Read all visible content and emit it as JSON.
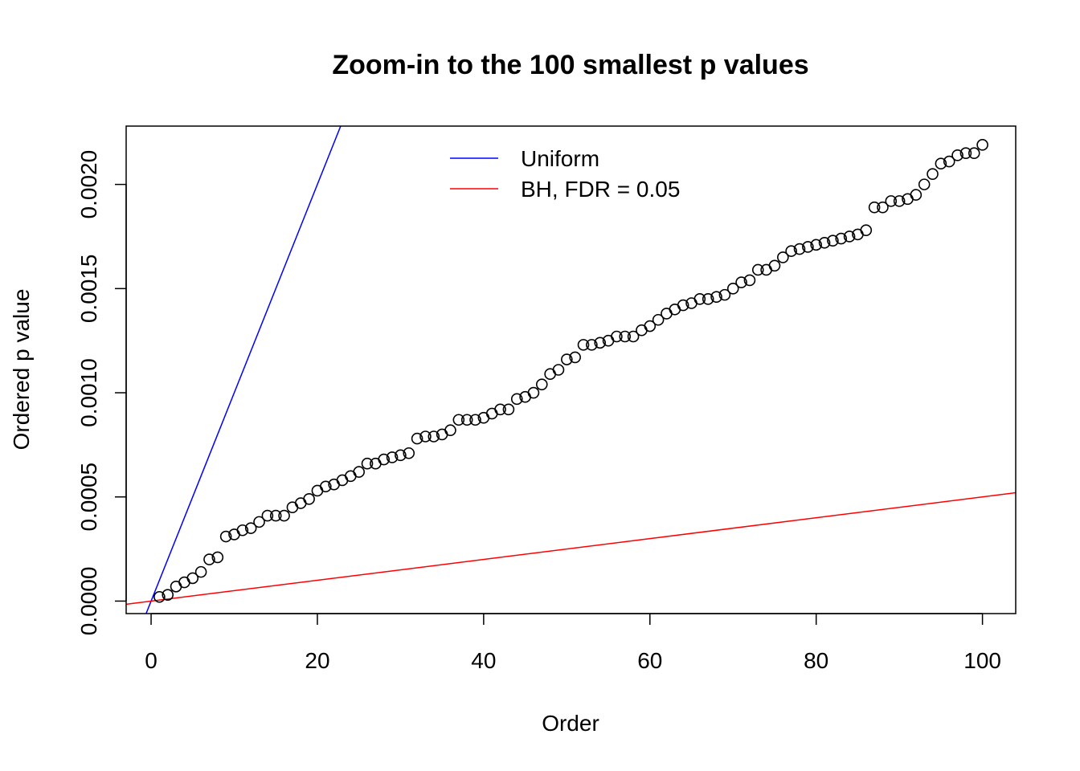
{
  "chart_data": {
    "type": "scatter",
    "title": "Zoom-in to the 100 smallest p values",
    "xlabel": "Order",
    "ylabel": "Ordered p value",
    "xlim": [
      -3,
      104
    ],
    "ylim": [
      -6e-05,
      0.00228
    ],
    "x_ticks": [
      0,
      20,
      40,
      60,
      80,
      100
    ],
    "x_tick_labels": [
      "0",
      "20",
      "40",
      "60",
      "80",
      "100"
    ],
    "y_ticks": [
      0.0,
      0.0005,
      0.001,
      0.0015,
      0.002
    ],
    "y_tick_labels": [
      "0.0000",
      "0.0005",
      "0.0010",
      "0.0015",
      "0.0020"
    ],
    "grid": false,
    "legend_position": "top-center",
    "legend": [
      {
        "label": "Uniform",
        "color": "#0000ff"
      },
      {
        "label": "BH, FDR = 0.05",
        "color": "#ff0000"
      }
    ],
    "lines": [
      {
        "name": "Uniform",
        "slope": 0.0001,
        "intercept": 0,
        "color": "#0000ff"
      },
      {
        "name": "BH, FDR = 0.05",
        "slope": 5e-06,
        "intercept": 0,
        "color": "#ff0000"
      }
    ],
    "points": {
      "x": [
        1,
        2,
        3,
        4,
        5,
        6,
        7,
        8,
        9,
        10,
        11,
        12,
        13,
        14,
        15,
        16,
        17,
        18,
        19,
        20,
        21,
        22,
        23,
        24,
        25,
        26,
        27,
        28,
        29,
        30,
        31,
        32,
        33,
        34,
        35,
        36,
        37,
        38,
        39,
        40,
        41,
        42,
        43,
        44,
        45,
        46,
        47,
        48,
        49,
        50,
        51,
        52,
        53,
        54,
        55,
        56,
        57,
        58,
        59,
        60,
        61,
        62,
        63,
        64,
        65,
        66,
        67,
        68,
        69,
        70,
        71,
        72,
        73,
        74,
        75,
        76,
        77,
        78,
        79,
        80,
        81,
        82,
        83,
        84,
        85,
        86,
        87,
        88,
        89,
        90,
        91,
        92,
        93,
        94,
        95,
        96,
        97,
        98,
        99,
        100
      ],
      "y": [
        2e-05,
        3e-05,
        7e-05,
        9e-05,
        0.00011,
        0.00014,
        0.0002,
        0.00021,
        0.00031,
        0.00032,
        0.00034,
        0.00035,
        0.00038,
        0.00041,
        0.00041,
        0.00041,
        0.00045,
        0.00047,
        0.00049,
        0.00053,
        0.00055,
        0.00056,
        0.00058,
        0.0006,
        0.00062,
        0.00066,
        0.00066,
        0.00068,
        0.00069,
        0.0007,
        0.00071,
        0.00078,
        0.00079,
        0.00079,
        0.0008,
        0.00082,
        0.00087,
        0.00087,
        0.00087,
        0.00088,
        0.0009,
        0.00092,
        0.00092,
        0.00097,
        0.00098,
        0.001,
        0.00104,
        0.00109,
        0.00111,
        0.00116,
        0.00117,
        0.00123,
        0.00123,
        0.00124,
        0.00125,
        0.00127,
        0.00127,
        0.00127,
        0.0013,
        0.00132,
        0.00135,
        0.00138,
        0.0014,
        0.00142,
        0.00143,
        0.00145,
        0.00145,
        0.00146,
        0.00147,
        0.0015,
        0.00153,
        0.00154,
        0.00159,
        0.00159,
        0.00161,
        0.00165,
        0.00168,
        0.00169,
        0.0017,
        0.00171,
        0.00172,
        0.00173,
        0.00174,
        0.00175,
        0.00176,
        0.00178,
        0.00189,
        0.00189,
        0.00192,
        0.00192,
        0.00193,
        0.00195,
        0.002,
        0.00205,
        0.0021,
        0.00211,
        0.00214,
        0.00215,
        0.00215,
        0.00219
      ],
      "marker": "open-circle",
      "color": "#000000"
    }
  }
}
